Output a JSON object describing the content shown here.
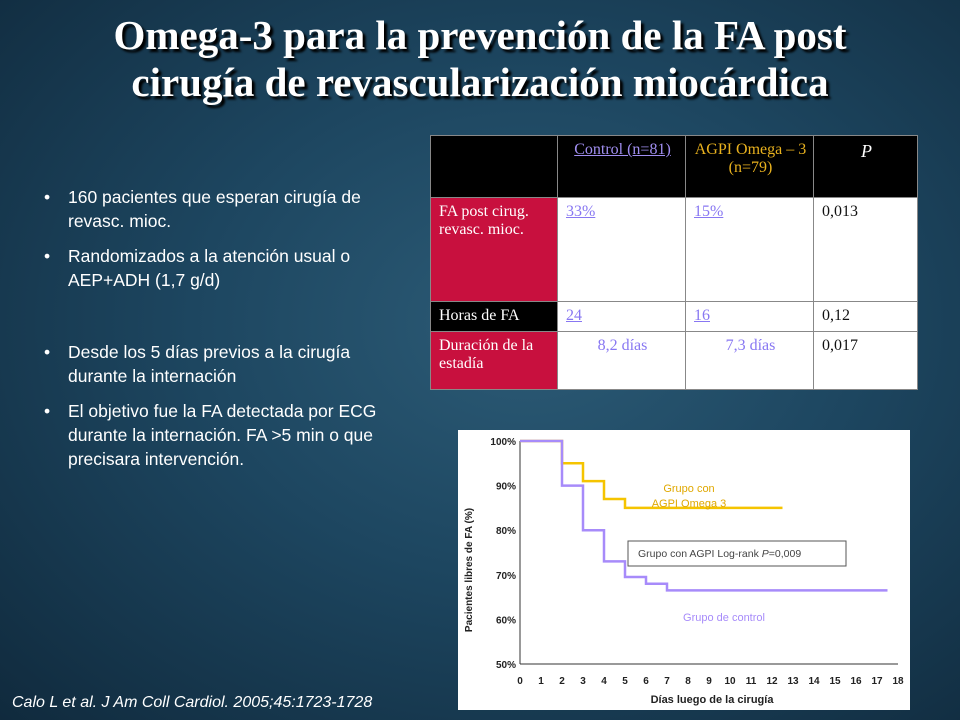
{
  "title": {
    "line1": "Omega-3 para la prevención de la FA post",
    "line2": "cirugía de revascularización miocárdica"
  },
  "bullets": [
    "160 pacientes que esperan cirugía de revasc. mioc.",
    "Randomizados a la atención usual o AEP+ADH (1,7 g/d)",
    "Desde los 5 días previos a la cirugía durante la internación",
    "El objetivo fue la FA detectada por ECG durante la internación. FA >5 min o que precisara intervención."
  ],
  "table": {
    "headers": [
      "",
      "Control (n=81)",
      "AGPI Omega – 3 (n=79)",
      "P"
    ],
    "rows": [
      {
        "label": "FA post cirug. revasc. mioc.",
        "control": "33%",
        "omega": "15%",
        "p": "0,013"
      },
      {
        "label": "Horas de FA",
        "control": "24",
        "omega": "16",
        "p": "0,12"
      },
      {
        "label": "Duración de la estadía",
        "control": "8,2 días",
        "omega": "7,3 días",
        "p": "0,017"
      }
    ]
  },
  "chart_data": {
    "type": "line",
    "step": true,
    "title": "",
    "xlabel": "Días luego de la cirugía",
    "ylabel": "Pacientes libres de FA (%)",
    "xlim": [
      0,
      18
    ],
    "ylim": [
      50,
      100
    ],
    "x_ticks": [
      "0",
      "1",
      "2",
      "3",
      "4",
      "5",
      "6",
      "7",
      "8",
      "9",
      "10",
      "11",
      "12",
      "13",
      "14",
      "15",
      "16",
      "17",
      "18"
    ],
    "y_ticks": [
      "50%",
      "60%",
      "70%",
      "80%",
      "90%",
      "100%"
    ],
    "grid": false,
    "series": [
      {
        "name": "Grupo con AGPI Omega 3",
        "color": "#f5c400",
        "x": [
          0,
          2,
          2,
          3,
          3,
          4,
          4,
          5,
          5,
          12.5
        ],
        "y": [
          100,
          100,
          95,
          95,
          91,
          91,
          87,
          87,
          85,
          85
        ]
      },
      {
        "name": "Grupo de control",
        "color": "#a78bfa",
        "x": [
          0,
          2,
          2,
          3,
          3,
          4,
          4,
          5,
          5,
          6,
          6,
          7,
          7,
          17.5
        ],
        "y": [
          100,
          100,
          90,
          90,
          80,
          80,
          73,
          73,
          69.5,
          69.5,
          68,
          68,
          66.5,
          66.5
        ]
      }
    ],
    "annotations": {
      "omega_line1": "Grupo con",
      "omega_line2": "AGPI Omega 3",
      "control": "Grupo de control",
      "logrank_prefix": "Grupo con AGPI Log-rank ",
      "logrank_p": "P",
      "logrank_value": "=0,009"
    }
  },
  "citation": "Calo L et al. J Am Coll Cardiol. 2005;45:1723-1728"
}
